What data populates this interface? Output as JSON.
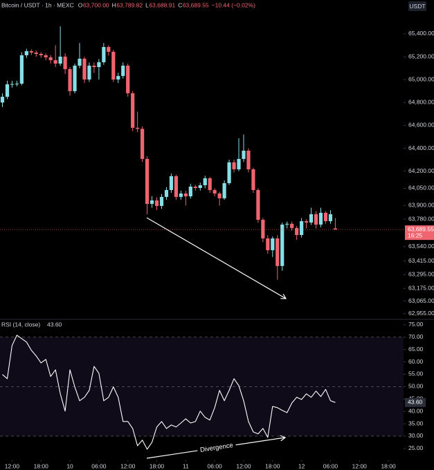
{
  "chart_data": [
    {
      "type": "candlestick",
      "title": "Bitcoin / USDT · 1h · MEXC",
      "legend": [
        {
          "key": "O",
          "value": "63,700.00"
        },
        {
          "key": "H",
          "value": "63,789.82"
        },
        {
          "key": "L",
          "value": "63,688.91"
        },
        {
          "key": "C",
          "value": "63,689.55"
        }
      ],
      "change": "−10.44 (−0.02%)",
      "currency": "USDT",
      "up_color": "#86dfe6",
      "down_color": "#f0646f",
      "open": [
        64800,
        64850,
        64959,
        64962,
        64965,
        65213,
        65249,
        65237,
        65225,
        65213,
        65195,
        65170,
        65140,
        65201,
        65092,
        64899,
        65122,
        65183,
        65001,
        65122,
        65110,
        65152,
        65285,
        65243,
        65001,
        65032,
        65122,
        64881,
        64579,
        64570,
        64307,
        63914,
        63944,
        63896,
        63975,
        64035,
        64156,
        63975,
        64005,
        63980,
        64065,
        64053,
        64077,
        64138,
        64035,
        64005,
        63963,
        64095,
        64277,
        64216,
        64307,
        64379,
        64216,
        64035,
        63775,
        63612,
        63509,
        63612,
        63371,
        63733,
        63740,
        63703,
        63642,
        63763,
        63751,
        63824,
        63733,
        63836,
        63763,
        63700
      ],
      "high": [
        64880,
        64990,
        64990,
        64990,
        65240,
        65270,
        65265,
        65255,
        65240,
        65230,
        65215,
        65300,
        65466,
        65230,
        65110,
        65140,
        65320,
        65200,
        65150,
        65150,
        65180,
        65320,
        65300,
        65260,
        65060,
        65150,
        65140,
        64900,
        64720,
        64590,
        64330,
        63980,
        63970,
        64000,
        64060,
        64180,
        64170,
        64030,
        64030,
        64090,
        64080,
        64100,
        64160,
        64150,
        64050,
        64020,
        64120,
        64300,
        64300,
        64488,
        64520,
        64400,
        64230,
        64050,
        63790,
        63640,
        63630,
        63640,
        63750,
        63760,
        63760,
        63720,
        63790,
        63780,
        63880,
        63850,
        63880,
        63850,
        63860,
        63789.82
      ],
      "low": [
        64760,
        64830,
        64930,
        64940,
        64950,
        65190,
        65215,
        65200,
        65190,
        65170,
        65140,
        65110,
        65120,
        65050,
        64860,
        64880,
        65100,
        64970,
        64980,
        65060,
        65000,
        65130,
        65210,
        64980,
        64970,
        65010,
        64850,
        64550,
        64540,
        64280,
        63823,
        63880,
        63860,
        63870,
        63950,
        64010,
        63950,
        63950,
        63900,
        63960,
        64030,
        64030,
        64050,
        64010,
        63980,
        63900,
        63950,
        64080,
        64190,
        64200,
        64280,
        64190,
        64010,
        63750,
        63580,
        63480,
        63450,
        63250,
        63330,
        63700,
        63680,
        63600,
        63620,
        63700,
        63730,
        63700,
        63710,
        63740,
        63740,
        63688.91
      ],
      "close": [
        64850,
        64959,
        64962,
        64965,
        65213,
        65249,
        65237,
        65225,
        65213,
        65195,
        65170,
        65140,
        65201,
        65092,
        64899,
        65122,
        65183,
        65001,
        65122,
        65110,
        65152,
        65285,
        65243,
        65001,
        65032,
        65122,
        64881,
        64579,
        64570,
        64307,
        63914,
        63944,
        63896,
        63975,
        64035,
        64156,
        63975,
        64005,
        63980,
        64065,
        64053,
        64077,
        64138,
        64035,
        64005,
        63963,
        64095,
        64277,
        64216,
        64307,
        64379,
        64216,
        64035,
        63775,
        63612,
        63509,
        63612,
        63371,
        63733,
        63740,
        63703,
        63642,
        63763,
        63751,
        63824,
        63733,
        63836,
        63763,
        63824,
        63689.55
      ],
      "current": {
        "value": 63689.55,
        "label": "63,689.55"
      },
      "countdown": "16:25",
      "xlim": [
        -0.5,
        83
      ],
      "ylim": [
        62917,
        65696
      ],
      "yticks": [
        {
          "value": 65400,
          "label": "65,400.00"
        },
        {
          "value": 65200,
          "label": "65,200.00"
        },
        {
          "value": 65000,
          "label": "65,000.00"
        },
        {
          "value": 64800,
          "label": "64,800.00"
        },
        {
          "value": 64600,
          "label": "64,600.00"
        },
        {
          "value": 64400,
          "label": "64,400.00"
        },
        {
          "value": 64200,
          "label": "64,200.00"
        },
        {
          "value": 64050,
          "label": "64,050.00"
        },
        {
          "value": 63900,
          "label": "63,900.00"
        },
        {
          "value": 63780,
          "label": "63,780.00"
        },
        {
          "value": 63540,
          "label": "63,540.00"
        },
        {
          "value": 63415,
          "label": "63,415.00"
        },
        {
          "value": 63295,
          "label": "63,295.00"
        },
        {
          "value": 63175,
          "label": "63,175.00"
        },
        {
          "value": 63065,
          "label": "63,065.00"
        },
        {
          "value": 62955,
          "label": "62,955.00"
        }
      ]
    },
    {
      "type": "line",
      "title": "RSI (14, close)",
      "color": "#ffffff",
      "values": [
        54.9,
        53.2,
        66.6,
        70.8,
        69.4,
        68.0,
        64.7,
        62.4,
        59.6,
        61.0,
        54.1,
        56.8,
        47.1,
        40.1,
        56.8,
        49.9,
        44.3,
        45.7,
        48.5,
        58.2,
        55.4,
        44.3,
        45.7,
        49.9,
        45.7,
        35.9,
        35.9,
        33.1,
        26.1,
        28.4,
        24.7,
        27.5,
        33.7,
        35.9,
        33.1,
        34.5,
        33.7,
        35.3,
        37.0,
        35.3,
        35.9,
        40.1,
        37.6,
        36.5,
        41.5,
        48.5,
        44.3,
        48.5,
        53.2,
        50.4,
        44.3,
        35.9,
        31.7,
        30.9,
        33.1,
        29.5,
        42.0,
        41.5,
        40.4,
        39.5,
        43.4,
        45.7,
        44.8,
        47.1,
        45.7,
        48.2,
        46.0,
        48.9,
        44.3,
        43.6
      ],
      "current": {
        "value": 43.6,
        "label": "43.60"
      },
      "levels": [
        70,
        50,
        30
      ],
      "annotation": "Divergence",
      "xlim": [
        -0.5,
        83
      ],
      "xticks": [
        {
          "value": 2,
          "label": "12:00"
        },
        {
          "value": 8,
          "label": "18:00"
        },
        {
          "value": 14,
          "label": "10"
        },
        {
          "value": 20,
          "label": "06:00"
        },
        {
          "value": 26,
          "label": "12:00"
        },
        {
          "value": 32,
          "label": "18:00"
        },
        {
          "value": 38,
          "label": "11"
        },
        {
          "value": 44,
          "label": "06:00"
        },
        {
          "value": 50,
          "label": "12:00"
        },
        {
          "value": 56,
          "label": "18:00"
        },
        {
          "value": 62,
          "label": "12"
        },
        {
          "value": 68,
          "label": "06:00"
        },
        {
          "value": 74,
          "label": "12:00"
        },
        {
          "value": 80,
          "label": "18:00"
        }
      ],
      "ylim": [
        20.5,
        77.2
      ],
      "yticks": [
        {
          "value": 75,
          "label": "75.00"
        },
        {
          "value": 70,
          "label": "70.00"
        },
        {
          "value": 65,
          "label": "65.00"
        },
        {
          "value": 60,
          "label": "60.00"
        },
        {
          "value": 55,
          "label": "55.00"
        },
        {
          "value": 50,
          "label": "50.00"
        },
        {
          "value": 45,
          "label": "45.00"
        },
        {
          "value": 40,
          "label": "40.00"
        },
        {
          "value": 35,
          "label": "35.00"
        },
        {
          "value": 30,
          "label": "30.00"
        },
        {
          "value": 25,
          "label": "25.00"
        }
      ]
    }
  ]
}
